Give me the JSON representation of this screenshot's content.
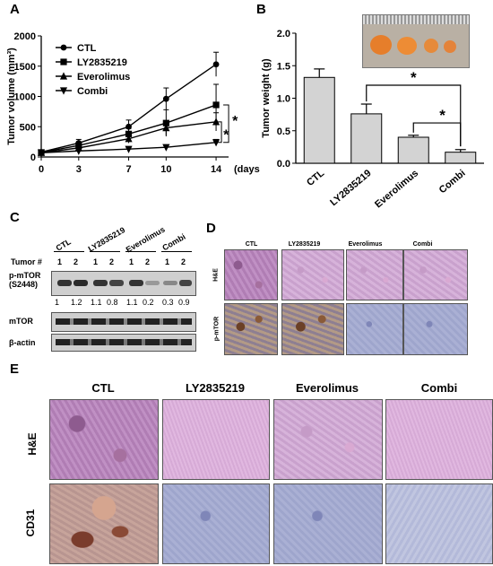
{
  "panels": {
    "A": "A",
    "B": "B",
    "C": "C",
    "D": "D",
    "E": "E"
  },
  "chart_data": [
    {
      "type": "line",
      "panel": "A",
      "xlabel": "(days)",
      "ylabel": "Tumor volume (mm³)",
      "x": [
        0,
        3,
        7,
        10,
        14
      ],
      "xlim": [
        0,
        15
      ],
      "ylim": [
        0,
        2000
      ],
      "yticks": [
        0,
        500,
        1000,
        1500,
        2000
      ],
      "xticks": [
        0,
        3,
        7,
        10,
        14
      ],
      "series": [
        {
          "name": "CTL",
          "marker": "circle",
          "values": [
            80,
            230,
            500,
            960,
            1530
          ],
          "err": [
            30,
            60,
            110,
            180,
            200
          ]
        },
        {
          "name": "LY2835219",
          "marker": "square",
          "values": [
            75,
            190,
            380,
            560,
            860
          ],
          "err": [
            25,
            50,
            90,
            220,
            340
          ]
        },
        {
          "name": "Everolimus",
          "marker": "triangle-up",
          "values": [
            70,
            150,
            300,
            480,
            580
          ],
          "err": [
            20,
            40,
            70,
            120,
            150
          ]
        },
        {
          "name": "Combi",
          "marker": "triangle-down",
          "values": [
            70,
            100,
            130,
            160,
            240
          ],
          "err": [
            15,
            20,
            25,
            30,
            50
          ]
        }
      ],
      "annotations": [
        "*",
        "*"
      ]
    },
    {
      "type": "bar",
      "panel": "B",
      "ylabel": "Tumor weight (g)",
      "categories": [
        "CTL",
        "LY2835219",
        "Everolimus",
        "Combi"
      ],
      "values": [
        1.32,
        0.76,
        0.4,
        0.17
      ],
      "err": [
        0.13,
        0.15,
        0.03,
        0.04
      ],
      "ylim": [
        0,
        2.0
      ],
      "yticks": [
        "0.0",
        "0.5",
        "1.0",
        "1.5",
        "2.0"
      ],
      "annotations": [
        "*",
        "*"
      ]
    }
  ],
  "blot": {
    "groups": [
      "CTL",
      "LY2835219",
      "Everolimus",
      "Combi"
    ],
    "tumor_label": "Tumor #",
    "tumor_numbers": [
      "1",
      "2",
      "1",
      "2",
      "1",
      "2",
      "1",
      "2"
    ],
    "rows": [
      "p-mTOR\n(S2448)",
      "mTOR",
      "β-actin"
    ],
    "row1": "p-mTOR",
    "row1b": "(S2448)",
    "row2": "mTOR",
    "row3": "β-actin",
    "quant": [
      "1",
      "1.2",
      "1.1",
      "0.8",
      "1.1",
      "0.2",
      "0.3",
      "0.9"
    ]
  },
  "panelD": {
    "cols": [
      "CTL",
      "LY2835219",
      "Everolimus",
      "Combi"
    ],
    "rows": [
      "H&E",
      "p-mTOR"
    ]
  },
  "panelE": {
    "cols": [
      "CTL",
      "LY2835219",
      "Everolimus",
      "Combi"
    ],
    "rows": [
      "H&E",
      "CD31"
    ]
  }
}
